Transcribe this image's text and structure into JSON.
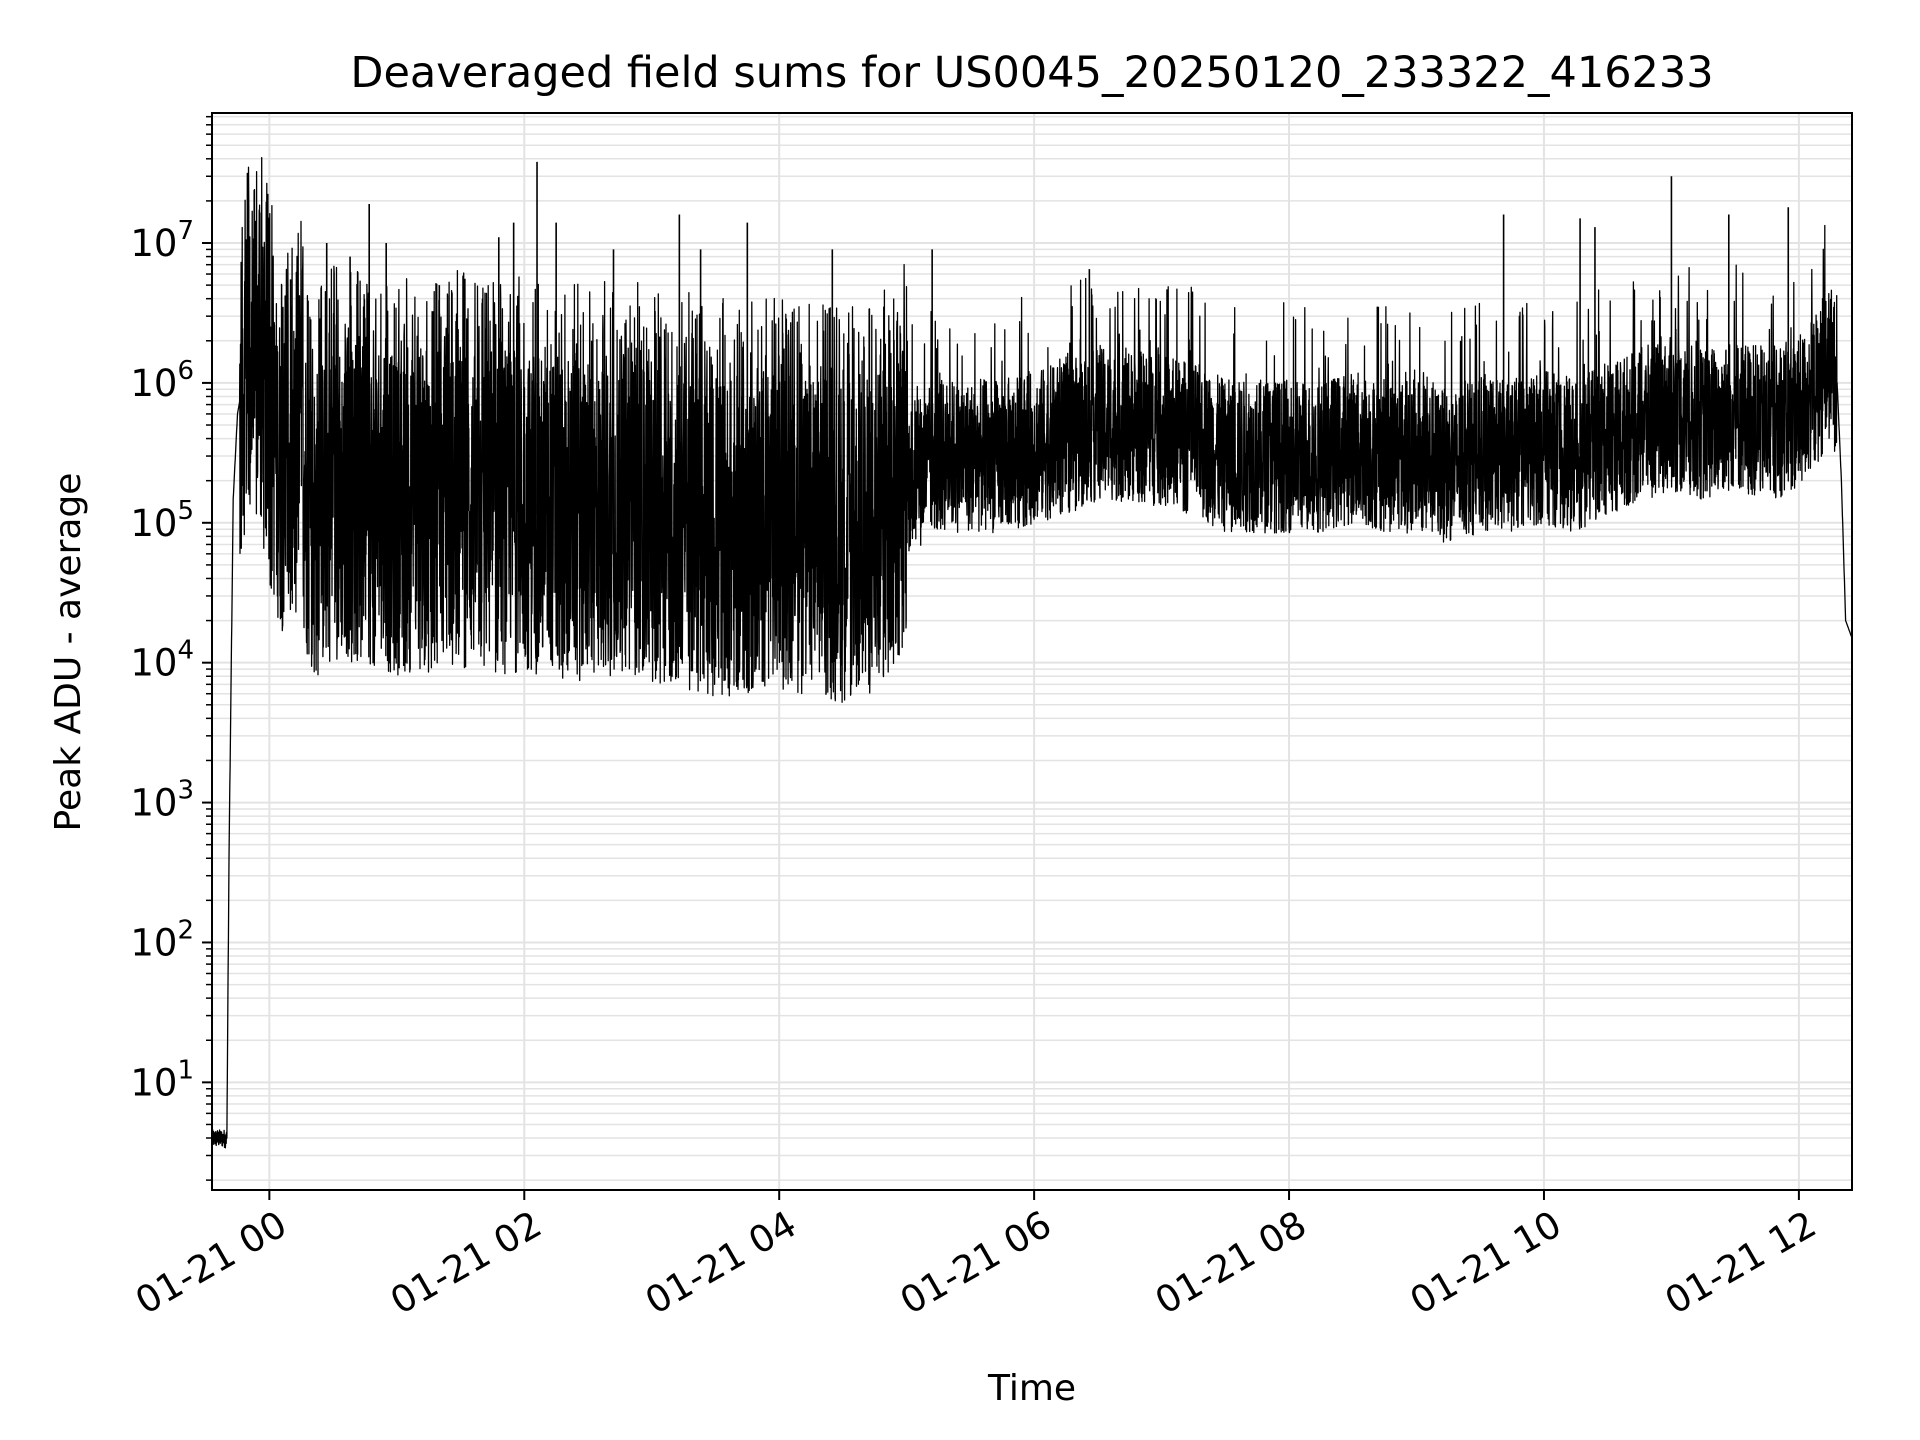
{
  "chart_data": {
    "type": "line",
    "title": "Deaveraged field sums for US0045_20250120_233322_416233",
    "xlabel": "Time",
    "ylabel": "Peak ADU - average",
    "yscale": "log",
    "grid": true,
    "grid_minor": true,
    "line_color": "#000000",
    "grid_color": "#e3e3e3",
    "xlim": [
      "2025-01-20 23:33",
      "2025-01-21 12:25"
    ],
    "ylim": [
      1.7,
      85000000
    ],
    "x_ticks": [
      {
        "value": "2025-01-21 00:00",
        "label": "01-21 00"
      },
      {
        "value": "2025-01-21 02:00",
        "label": "01-21 02"
      },
      {
        "value": "2025-01-21 04:00",
        "label": "01-21 04"
      },
      {
        "value": "2025-01-21 06:00",
        "label": "01-21 06"
      },
      {
        "value": "2025-01-21 08:00",
        "label": "01-21 08"
      },
      {
        "value": "2025-01-21 10:00",
        "label": "01-21 10"
      },
      {
        "value": "2025-01-21 12:00",
        "label": "01-21 12"
      }
    ],
    "y_ticks": [
      {
        "value": 10,
        "base": "10",
        "exp": "1"
      },
      {
        "value": 100,
        "base": "10",
        "exp": "2"
      },
      {
        "value": 1000,
        "base": "10",
        "exp": "3"
      },
      {
        "value": 10000,
        "base": "10",
        "exp": "4"
      },
      {
        "value": 100000,
        "base": "10",
        "exp": "5"
      },
      {
        "value": 1000000,
        "base": "10",
        "exp": "6"
      },
      {
        "value": 10000000,
        "base": "10",
        "exp": "7"
      }
    ],
    "series": [
      {
        "x": [
          "2025-01-20 23:33",
          "2025-01-20 23:38",
          "2025-01-20 23:40",
          "2025-01-20 23:41",
          "2025-01-20 23:43",
          "2025-01-20 23:45",
          "2025-01-20 23:48",
          "2025-01-20 23:50",
          "2025-01-20 23:55",
          "2025-01-21 00:00",
          "2025-01-21 00:05",
          "2025-01-21 00:10",
          "2025-01-21 00:15",
          "2025-01-21 00:20",
          "2025-01-21 00:30",
          "2025-01-21 00:45",
          "2025-01-21 01:00",
          "2025-01-21 01:15",
          "2025-01-21 01:30",
          "2025-01-21 01:45",
          "2025-01-21 02:00",
          "2025-01-21 02:15",
          "2025-01-21 02:30",
          "2025-01-21 02:45",
          "2025-01-21 03:00",
          "2025-01-21 03:15",
          "2025-01-21 03:30",
          "2025-01-21 03:45",
          "2025-01-21 04:00",
          "2025-01-21 04:15",
          "2025-01-21 04:30",
          "2025-01-21 04:45",
          "2025-01-21 04:55",
          "2025-01-21 05:00",
          "2025-01-21 05:15",
          "2025-01-21 05:30",
          "2025-01-21 05:45",
          "2025-01-21 06:00",
          "2025-01-21 06:15",
          "2025-01-21 06:30",
          "2025-01-21 06:45",
          "2025-01-21 07:00",
          "2025-01-21 07:15",
          "2025-01-21 07:30",
          "2025-01-21 07:45",
          "2025-01-21 08:00",
          "2025-01-21 08:15",
          "2025-01-21 08:30",
          "2025-01-21 08:45",
          "2025-01-21 09:00",
          "2025-01-21 09:15",
          "2025-01-21 09:30",
          "2025-01-21 09:45",
          "2025-01-21 10:00",
          "2025-01-21 10:15",
          "2025-01-21 10:30",
          "2025-01-21 10:45",
          "2025-01-21 11:00",
          "2025-01-21 11:15",
          "2025-01-21 11:30",
          "2025-01-21 11:45",
          "2025-01-21 12:00",
          "2025-01-21 12:10",
          "2025-01-21 12:15",
          "2025-01-21 12:18",
          "2025-01-21 12:20",
          "2025-01-21 12:22",
          "2025-01-21 12:25"
        ],
        "y": [
          4,
          4,
          4,
          400,
          150000,
          600000,
          1100000,
          1200000,
          1000000,
          500000,
          250000,
          180000,
          300000,
          90000,
          150000,
          130000,
          110000,
          120000,
          130000,
          110000,
          120000,
          110000,
          100000,
          120000,
          100000,
          90000,
          80000,
          80000,
          90000,
          80000,
          70000,
          80000,
          120000,
          200000,
          300000,
          300000,
          300000,
          350000,
          400000,
          500000,
          500000,
          450000,
          400000,
          300000,
          300000,
          300000,
          300000,
          350000,
          300000,
          300000,
          250000,
          300000,
          300000,
          350000,
          300000,
          400000,
          500000,
          600000,
          500000,
          600000,
          500000,
          600000,
          1000000,
          1400000,
          1000000,
          200000,
          20000,
          15000
        ]
      }
    ],
    "spikes": [
      {
        "x": "2025-01-20 23:55",
        "y": 6000000
      },
      {
        "x": "2025-01-21 00:10",
        "y": 5500000
      },
      {
        "x": "2025-01-21 00:27",
        "y": 10000000
      },
      {
        "x": "2025-01-21 00:38",
        "y": 8000000
      },
      {
        "x": "2025-01-21 00:47",
        "y": 19000000
      },
      {
        "x": "2025-01-21 00:55",
        "y": 10000000
      },
      {
        "x": "2025-01-21 01:20",
        "y": 5000000
      },
      {
        "x": "2025-01-21 01:48",
        "y": 11000000
      },
      {
        "x": "2025-01-21 01:55",
        "y": 14000000
      },
      {
        "x": "2025-01-21 02:06",
        "y": 38000000
      },
      {
        "x": "2025-01-21 02:15",
        "y": 14000000
      },
      {
        "x": "2025-01-21 02:42",
        "y": 9000000
      },
      {
        "x": "2025-01-21 03:13",
        "y": 16000000
      },
      {
        "x": "2025-01-21 03:23",
        "y": 9000000
      },
      {
        "x": "2025-01-21 03:45",
        "y": 14000000
      },
      {
        "x": "2025-01-21 04:25",
        "y": 9000000
      },
      {
        "x": "2025-01-21 05:12",
        "y": 9000000
      },
      {
        "x": "2025-01-21 06:26",
        "y": 6500000
      },
      {
        "x": "2025-01-21 08:42",
        "y": 3500000
      },
      {
        "x": "2025-01-21 09:41",
        "y": 16000000
      },
      {
        "x": "2025-01-21 10:17",
        "y": 15000000
      },
      {
        "x": "2025-01-21 10:24",
        "y": 13000000
      },
      {
        "x": "2025-01-21 11:00",
        "y": 30000000
      },
      {
        "x": "2025-01-21 11:27",
        "y": 16000000
      },
      {
        "x": "2025-01-21 11:55",
        "y": 18000000
      }
    ]
  }
}
